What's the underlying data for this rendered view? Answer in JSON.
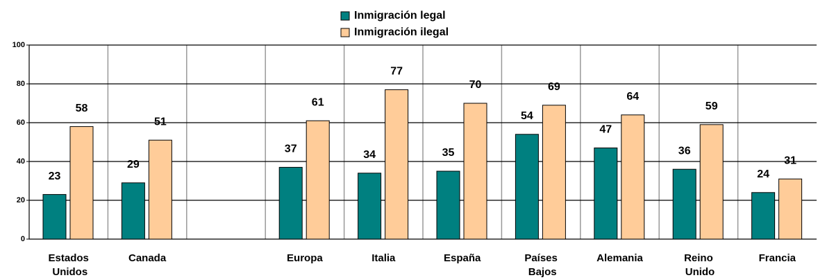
{
  "chart_data": {
    "type": "bar",
    "categories": [
      "Estados Unidos",
      "Canada",
      null,
      "Europa",
      "Italia",
      "España",
      "Países Bajos",
      "Alemania",
      "Reino Unido",
      "Francia"
    ],
    "series": [
      {
        "name": "Inmigración legal",
        "color": "#008080",
        "values": [
          23,
          29,
          null,
          37,
          34,
          35,
          54,
          47,
          36,
          24
        ]
      },
      {
        "name": "Inmigración ilegal",
        "color": "#FFCC99",
        "values": [
          58,
          51,
          null,
          61,
          77,
          70,
          69,
          64,
          59,
          31
        ]
      }
    ],
    "ylim": [
      0,
      100
    ],
    "yticks": [
      0,
      20,
      40,
      60,
      80,
      100
    ],
    "grid": true,
    "legend": "top"
  }
}
